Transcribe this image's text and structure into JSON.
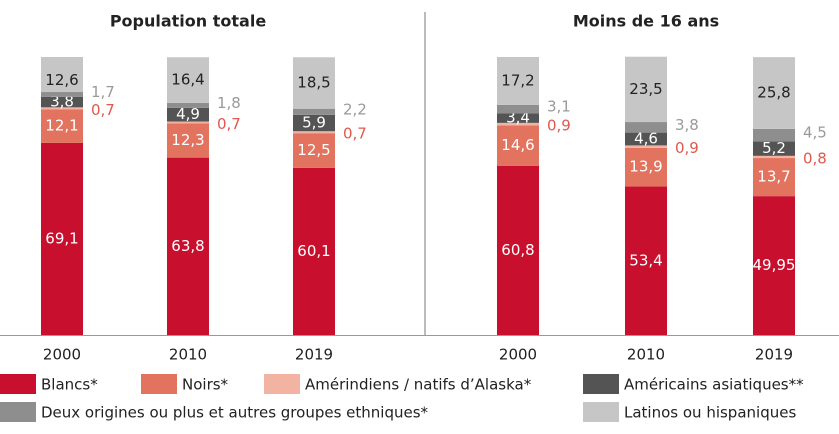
{
  "chart_data": [
    {
      "type": "bar",
      "stacked": true,
      "title": "Population totale",
      "categories": [
        "2000",
        "2010",
        "2019"
      ],
      "series": [
        {
          "name": "Blancs*",
          "color": "#c8102e",
          "label_color": "#ffffff",
          "values": [
            69.1,
            63.8,
            60.1
          ],
          "value_labels": [
            "69,1",
            "63,8",
            "60,1"
          ]
        },
        {
          "name": "Noirs*",
          "color": "#e2735f",
          "label_color": "#ffffff",
          "values": [
            12.1,
            12.3,
            12.5
          ],
          "value_labels": [
            "12,1",
            "12,3",
            "12,5"
          ]
        },
        {
          "name": "Amérindiens / natifs d’Alaska*",
          "color": "#f2b3a3",
          "label_color": "#e0584d",
          "label_position": "outside",
          "values": [
            0.7,
            0.7,
            0.7
          ],
          "value_labels": [
            "0,7",
            "0,7",
            "0,7"
          ]
        },
        {
          "name": "Américains asiatiques**",
          "color": "#545454",
          "label_color": "#ffffff",
          "values": [
            3.8,
            4.9,
            5.9
          ],
          "value_labels": [
            "3,8",
            "4,9",
            "5,9"
          ]
        },
        {
          "name": "Deux origines ou plus et autres groupes ethniques*",
          "color": "#8e8e8e",
          "label_color": "#9a9a9a",
          "label_position": "outside",
          "values": [
            1.7,
            1.8,
            2.2
          ],
          "value_labels": [
            "1,7",
            "1,8",
            "2,2"
          ]
        },
        {
          "name": "Latinos ou hispaniques",
          "color": "#c6c6c6",
          "label_color": "#222222",
          "values": [
            12.6,
            16.4,
            18.5
          ],
          "value_labels": [
            "12,6",
            "16,4",
            "18,5"
          ]
        }
      ]
    },
    {
      "type": "bar",
      "stacked": true,
      "title": "Moins de 16 ans",
      "categories": [
        "2000",
        "2010",
        "2019"
      ],
      "series": [
        {
          "name": "Blancs*",
          "color": "#c8102e",
          "label_color": "#ffffff",
          "values": [
            60.8,
            53.4,
            49.95
          ],
          "value_labels": [
            "60,8",
            "53,4",
            "49,95"
          ]
        },
        {
          "name": "Noirs*",
          "color": "#e2735f",
          "label_color": "#ffffff",
          "values": [
            14.6,
            13.9,
            13.7
          ],
          "value_labels": [
            "14,6",
            "13,9",
            "13,7"
          ]
        },
        {
          "name": "Amérindiens / natifs d’Alaska*",
          "color": "#f2b3a3",
          "label_color": "#e0584d",
          "label_position": "outside",
          "values": [
            0.9,
            0.9,
            0.8
          ],
          "value_labels": [
            "0,9",
            "0,9",
            "0,8"
          ]
        },
        {
          "name": "Américains asiatiques**",
          "color": "#545454",
          "label_color": "#ffffff",
          "values": [
            3.4,
            4.6,
            5.2
          ],
          "value_labels": [
            "3,4",
            "4,6",
            "5,2"
          ]
        },
        {
          "name": "Deux origines ou plus et autres groupes ethniques*",
          "color": "#8e8e8e",
          "label_color": "#9a9a9a",
          "label_position": "outside",
          "values": [
            3.1,
            3.8,
            4.5
          ],
          "value_labels": [
            "3,1",
            "3,8",
            "4,5"
          ]
        },
        {
          "name": "Latinos ou hispaniques",
          "color": "#c6c6c6",
          "label_color": "#222222",
          "values": [
            17.2,
            23.5,
            25.8
          ],
          "value_labels": [
            "17,2",
            "23,5",
            "25,8"
          ]
        }
      ]
    }
  ]
}
